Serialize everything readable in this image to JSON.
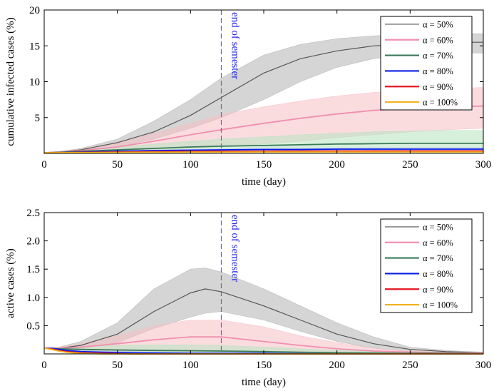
{
  "chart_data": [
    {
      "type": "line",
      "id": "top",
      "xlabel": "time (day)",
      "ylabel": "cumulative infected cases (%)",
      "xlim": [
        0,
        300
      ],
      "ylim": [
        0,
        20
      ],
      "xticks": [
        0,
        50,
        100,
        150,
        200,
        250,
        300
      ],
      "yticks": [
        5,
        10,
        15,
        20
      ],
      "ytick_labels": [
        "5",
        "10",
        "15",
        "20"
      ],
      "annotation": {
        "text": "end of semester",
        "x": 121
      },
      "series": [
        {
          "name": "α = 50%",
          "color": "#555555",
          "band": "#b3b3b3",
          "x": [
            0,
            10,
            25,
            50,
            75,
            100,
            121,
            150,
            175,
            200,
            225,
            250,
            275,
            300
          ],
          "mean": [
            0.1,
            0.2,
            0.5,
            1.5,
            3.0,
            5.3,
            7.8,
            11.2,
            13.2,
            14.3,
            15.0,
            15.3,
            15.5,
            15.5
          ],
          "lower": [
            0.1,
            0.15,
            0.3,
            0.9,
            2.0,
            3.5,
            5.0,
            7.5,
            10.0,
            12.0,
            13.2,
            13.8,
            14.0,
            14.0
          ],
          "upper": [
            0.1,
            0.25,
            0.7,
            2.0,
            4.5,
            7.5,
            10.5,
            13.7,
            15.2,
            16.0,
            16.4,
            16.6,
            16.7,
            16.7
          ]
        },
        {
          "name": "α = 60%",
          "color": "#f08fae",
          "band": "#f5c0c4",
          "x": [
            0,
            10,
            25,
            50,
            75,
            100,
            121,
            150,
            175,
            200,
            225,
            250,
            275,
            300
          ],
          "mean": [
            0.1,
            0.2,
            0.4,
            0.9,
            1.7,
            2.6,
            3.3,
            4.2,
            4.9,
            5.5,
            6.0,
            6.3,
            6.5,
            6.6
          ],
          "lower": [
            0.1,
            0.15,
            0.2,
            0.4,
            0.6,
            0.8,
            0.9,
            1.3,
            1.7,
            2.2,
            2.6,
            3.0,
            3.3,
            3.5
          ],
          "upper": [
            0.1,
            0.3,
            0.6,
            1.4,
            2.8,
            4.2,
            5.4,
            6.5,
            7.3,
            8.0,
            8.5,
            8.8,
            9.0,
            9.2
          ]
        },
        {
          "name": "α = 70%",
          "color": "#3a7a5a",
          "band": "#b7e3bf",
          "x": [
            0,
            10,
            25,
            50,
            75,
            100,
            121,
            150,
            175,
            200,
            225,
            250,
            275,
            300
          ],
          "mean": [
            0.1,
            0.15,
            0.3,
            0.5,
            0.7,
            0.9,
            1.0,
            1.1,
            1.2,
            1.3,
            1.35,
            1.4,
            1.4,
            1.4
          ],
          "lower": [
            0.1,
            0.1,
            0.15,
            0.25,
            0.3,
            0.35,
            0.4,
            0.45,
            0.5,
            0.5,
            0.55,
            0.55,
            0.55,
            0.55
          ],
          "upper": [
            0.1,
            0.2,
            0.45,
            0.9,
            1.3,
            1.7,
            2.0,
            2.3,
            2.6,
            2.8,
            3.0,
            3.1,
            3.2,
            3.2
          ]
        },
        {
          "name": "α = 80%",
          "color": "#0a1ee6",
          "band": "#b8c4f0",
          "x": [
            0,
            10,
            25,
            50,
            75,
            100,
            121,
            150,
            175,
            200,
            225,
            250,
            275,
            300
          ],
          "mean": [
            0.1,
            0.1,
            0.2,
            0.3,
            0.4,
            0.45,
            0.5,
            0.55,
            0.55,
            0.6,
            0.6,
            0.6,
            0.6,
            0.6
          ],
          "lower": [
            0.1,
            0.1,
            0.15,
            0.2,
            0.25,
            0.3,
            0.3,
            0.35,
            0.35,
            0.35,
            0.35,
            0.35,
            0.35,
            0.35
          ],
          "upper": [
            0.1,
            0.15,
            0.25,
            0.4,
            0.5,
            0.6,
            0.65,
            0.7,
            0.75,
            0.75,
            0.8,
            0.8,
            0.8,
            0.8
          ]
        },
        {
          "name": "α = 90%",
          "color": "#e8141e",
          "band": "#f3b3b3",
          "x": [
            0,
            10,
            25,
            50,
            75,
            100,
            121,
            150,
            175,
            200,
            225,
            250,
            275,
            300
          ],
          "mean": [
            0.1,
            0.1,
            0.15,
            0.2,
            0.25,
            0.28,
            0.3,
            0.3,
            0.32,
            0.32,
            0.33,
            0.33,
            0.33,
            0.33
          ],
          "lower": [
            0.1,
            0.1,
            0.12,
            0.15,
            0.18,
            0.2,
            0.22,
            0.22,
            0.23,
            0.23,
            0.24,
            0.24,
            0.24,
            0.24
          ],
          "upper": [
            0.1,
            0.12,
            0.18,
            0.25,
            0.32,
            0.36,
            0.38,
            0.4,
            0.41,
            0.42,
            0.42,
            0.42,
            0.42,
            0.42
          ]
        },
        {
          "name": "α = 100%",
          "color": "#f2b21e",
          "band": "#f7dfa0",
          "x": [
            0,
            10,
            25,
            50,
            75,
            100,
            121,
            150,
            175,
            200,
            225,
            250,
            275,
            300
          ],
          "mean": [
            0.1,
            0.1,
            0.12,
            0.15,
            0.17,
            0.18,
            0.19,
            0.2,
            0.2,
            0.2,
            0.2,
            0.2,
            0.2,
            0.2
          ],
          "lower": [
            0.1,
            0.1,
            0.1,
            0.12,
            0.13,
            0.14,
            0.15,
            0.15,
            0.15,
            0.15,
            0.15,
            0.15,
            0.15,
            0.15
          ],
          "upper": [
            0.1,
            0.11,
            0.14,
            0.18,
            0.21,
            0.23,
            0.24,
            0.25,
            0.25,
            0.25,
            0.25,
            0.25,
            0.25,
            0.25
          ]
        }
      ]
    },
    {
      "type": "line",
      "id": "bottom",
      "xlabel": "time (day)",
      "ylabel": "active cases (%)",
      "xlim": [
        0,
        300
      ],
      "ylim": [
        0,
        2.5
      ],
      "xticks": [
        0,
        50,
        100,
        150,
        200,
        250,
        300
      ],
      "yticks": [
        0.5,
        1.0,
        1.5,
        2.0,
        2.5
      ],
      "ytick_labels": [
        "0.5",
        "1.0",
        "1.5",
        "2.0",
        "2.5"
      ],
      "annotation": {
        "text": "end of semester",
        "x": 121
      },
      "series": [
        {
          "name": "α = 50%",
          "color": "#555555",
          "band": "#b3b3b3",
          "x": [
            0,
            10,
            25,
            50,
            75,
            100,
            110,
            121,
            150,
            175,
            200,
            225,
            250,
            275,
            300
          ],
          "mean": [
            0.1,
            0.1,
            0.15,
            0.35,
            0.75,
            1.08,
            1.15,
            1.1,
            0.85,
            0.6,
            0.35,
            0.18,
            0.08,
            0.04,
            0.02
          ],
          "lower": [
            0.1,
            0.1,
            0.1,
            0.2,
            0.45,
            0.65,
            0.72,
            0.75,
            0.6,
            0.4,
            0.22,
            0.1,
            0.04,
            0.02,
            0.01
          ],
          "upper": [
            0.1,
            0.12,
            0.22,
            0.55,
            1.15,
            1.5,
            1.52,
            1.45,
            1.15,
            0.85,
            0.55,
            0.3,
            0.12,
            0.06,
            0.03
          ]
        },
        {
          "name": "α = 60%",
          "color": "#f08fae",
          "band": "#f5c0c4",
          "x": [
            0,
            10,
            25,
            50,
            75,
            100,
            121,
            150,
            175,
            200,
            225,
            250,
            275,
            300
          ],
          "mean": [
            0.1,
            0.1,
            0.12,
            0.18,
            0.25,
            0.3,
            0.3,
            0.22,
            0.15,
            0.09,
            0.05,
            0.03,
            0.02,
            0.01
          ],
          "lower": [
            0.1,
            0.08,
            0.05,
            0.05,
            0.05,
            0.05,
            0.05,
            0.04,
            0.03,
            0.02,
            0.01,
            0.01,
            0.01,
            0.0
          ],
          "upper": [
            0.1,
            0.12,
            0.18,
            0.32,
            0.5,
            0.6,
            0.6,
            0.48,
            0.32,
            0.2,
            0.1,
            0.05,
            0.03,
            0.02
          ]
        },
        {
          "name": "α = 70%",
          "color": "#3a7a5a",
          "band": "#b7e3bf",
          "x": [
            0,
            10,
            25,
            50,
            75,
            100,
            121,
            150,
            175,
            200,
            225,
            250,
            275,
            300
          ],
          "mean": [
            0.1,
            0.09,
            0.08,
            0.07,
            0.06,
            0.055,
            0.05,
            0.04,
            0.03,
            0.02,
            0.015,
            0.01,
            0.01,
            0.0
          ],
          "lower": [
            0.1,
            0.07,
            0.04,
            0.03,
            0.02,
            0.015,
            0.01,
            0.01,
            0.01,
            0.0,
            0.0,
            0.0,
            0.0,
            0.0
          ],
          "upper": [
            0.1,
            0.11,
            0.13,
            0.15,
            0.16,
            0.16,
            0.15,
            0.12,
            0.09,
            0.06,
            0.04,
            0.03,
            0.02,
            0.01
          ]
        },
        {
          "name": "α = 80%",
          "color": "#0a1ee6",
          "band": "#b8c4f0",
          "x": [
            0,
            5,
            10,
            15,
            25,
            40,
            60,
            100,
            150,
            200,
            300
          ],
          "mean": [
            0.1,
            0.1,
            0.08,
            0.06,
            0.04,
            0.03,
            0.02,
            0.01,
            0.01,
            0.0,
            0.0
          ],
          "lower": [
            0.1,
            0.09,
            0.06,
            0.04,
            0.02,
            0.01,
            0.01,
            0.0,
            0.0,
            0.0,
            0.0
          ],
          "upper": [
            0.1,
            0.11,
            0.1,
            0.08,
            0.06,
            0.05,
            0.04,
            0.02,
            0.01,
            0.01,
            0.0
          ]
        },
        {
          "name": "α = 90%",
          "color": "#e8141e",
          "band": "#f3b3b3",
          "x": [
            0,
            5,
            10,
            15,
            25,
            40,
            60,
            100,
            150,
            200,
            300
          ],
          "mean": [
            0.1,
            0.09,
            0.06,
            0.04,
            0.02,
            0.01,
            0.0,
            0.0,
            0.0,
            0.0,
            0.0
          ],
          "lower": [
            0.1,
            0.08,
            0.05,
            0.03,
            0.01,
            0.0,
            0.0,
            0.0,
            0.0,
            0.0,
            0.0
          ],
          "upper": [
            0.1,
            0.1,
            0.08,
            0.06,
            0.03,
            0.02,
            0.01,
            0.0,
            0.0,
            0.0,
            0.0
          ]
        },
        {
          "name": "α = 100%",
          "color": "#f2b21e",
          "band": "#f7dfa0",
          "x": [
            0,
            5,
            10,
            15,
            25,
            40,
            60,
            100,
            150,
            200,
            300
          ],
          "mean": [
            0.1,
            0.08,
            0.05,
            0.03,
            0.01,
            0.0,
            0.0,
            0.0,
            0.0,
            0.0,
            0.0
          ],
          "lower": [
            0.1,
            0.07,
            0.04,
            0.02,
            0.0,
            0.0,
            0.0,
            0.0,
            0.0,
            0.0,
            0.0
          ],
          "upper": [
            0.1,
            0.09,
            0.06,
            0.04,
            0.02,
            0.01,
            0.0,
            0.0,
            0.0,
            0.0,
            0.0
          ]
        }
      ]
    }
  ]
}
